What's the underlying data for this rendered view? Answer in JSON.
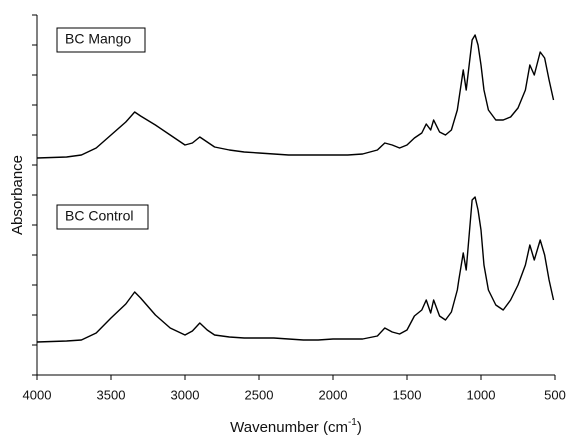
{
  "chart_data": {
    "type": "line",
    "xlabel": {
      "text": "Wavenumber (cm",
      "sup": "-1",
      "end": ")"
    },
    "ylabel": "Absorbance",
    "x": [
      4000,
      3800,
      3700,
      3600,
      3500,
      3400,
      3340,
      3300,
      3200,
      3100,
      3000,
      2950,
      2900,
      2850,
      2800,
      2700,
      2600,
      2500,
      2400,
      2300,
      2200,
      2100,
      2000,
      1900,
      1800,
      1700,
      1650,
      1600,
      1550,
      1500,
      1450,
      1400,
      1370,
      1340,
      1320,
      1280,
      1240,
      1200,
      1160,
      1150,
      1120,
      1100,
      1060,
      1040,
      1020,
      1000,
      980,
      950,
      900,
      850,
      800,
      750,
      700,
      670,
      640,
      600,
      570,
      540,
      510
    ],
    "series": [
      {
        "name": "BC Mango",
        "color": "#000000",
        "values": [
          217,
          218,
          220,
          227,
          240,
          253,
          263,
          259,
          250,
          240,
          230,
          232,
          238,
          233,
          228,
          225,
          223,
          222,
          221,
          220,
          220,
          220,
          220,
          220,
          221,
          225,
          232,
          230,
          227,
          230,
          237,
          242,
          251,
          245,
          255,
          243,
          240,
          245,
          265,
          275,
          305,
          285,
          335,
          340,
          330,
          310,
          285,
          265,
          255,
          255,
          258,
          267,
          285,
          310,
          300,
          323,
          317,
          295,
          275
        ]
      },
      {
        "name": "BC Control",
        "color": "#000000",
        "values": [
          33,
          34,
          35,
          42,
          57,
          71,
          83,
          77,
          60,
          47,
          40,
          44,
          52,
          45,
          40,
          38,
          37,
          37,
          37,
          36,
          35,
          35,
          36,
          36,
          36,
          39,
          47,
          43,
          41,
          45,
          59,
          65,
          75,
          62,
          75,
          59,
          55,
          63,
          85,
          95,
          122,
          105,
          175,
          178,
          165,
          145,
          110,
          85,
          70,
          65,
          75,
          90,
          110,
          130,
          115,
          135,
          120,
          95,
          75
        ]
      }
    ],
    "xlim": [
      4000,
      500
    ],
    "xticks": [
      4000,
      3500,
      3000,
      2500,
      2000,
      1500,
      1000,
      500
    ],
    "ylim": [
      0,
      360
    ],
    "yticks": [
      0,
      30,
      60,
      90,
      120,
      150,
      180,
      210,
      240,
      270,
      300,
      330,
      360
    ],
    "grid": false
  }
}
